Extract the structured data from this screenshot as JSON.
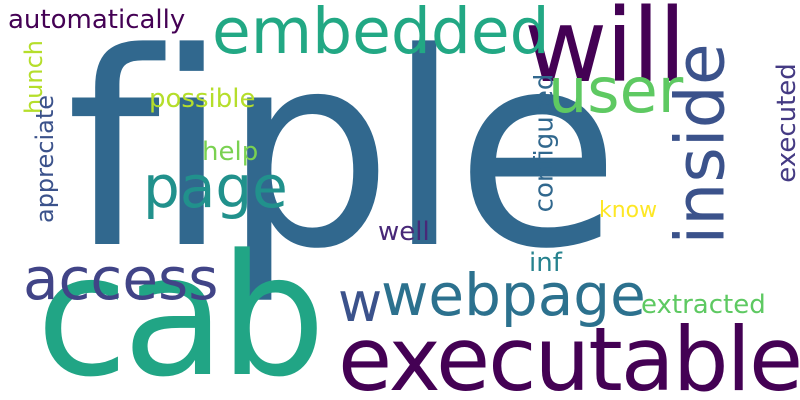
{
  "words": [
    {
      "text": "fiple",
      "color": "#31688e",
      "orientation": "horizontal"
    },
    {
      "text": "cab",
      "color": "#21a585",
      "orientation": "horizontal"
    },
    {
      "text": "executable",
      "color": "#440154",
      "orientation": "horizontal"
    },
    {
      "text": "webpage",
      "color": "#2c718e",
      "orientation": "horizontal"
    },
    {
      "text": "will",
      "color": "#440154",
      "orientation": "horizontal"
    },
    {
      "text": "embedded",
      "color": "#22a884",
      "orientation": "horizontal"
    },
    {
      "text": "inside",
      "color": "#3b528b",
      "orientation": "vertical"
    },
    {
      "text": "user",
      "color": "#5ec962",
      "orientation": "horizontal"
    },
    {
      "text": "page",
      "color": "#21918c",
      "orientation": "horizontal"
    },
    {
      "text": "access",
      "color": "#414487",
      "orientation": "horizontal"
    },
    {
      "text": "w",
      "color": "#3b528b",
      "orientation": "horizontal"
    },
    {
      "text": "automatically",
      "color": "#440154",
      "orientation": "horizontal"
    },
    {
      "text": "possible",
      "color": "#b5de2b",
      "orientation": "horizontal"
    },
    {
      "text": "help",
      "color": "#7ad151",
      "orientation": "horizontal"
    },
    {
      "text": "well",
      "color": "#482878",
      "orientation": "horizontal"
    },
    {
      "text": "inf",
      "color": "#26828e",
      "orientation": "horizontal"
    },
    {
      "text": "know",
      "color": "#fde725",
      "orientation": "horizontal"
    },
    {
      "text": "extracted",
      "color": "#5ec962",
      "orientation": "horizontal"
    },
    {
      "text": "hunch",
      "color": "#b5de2b",
      "orientation": "vertical"
    },
    {
      "text": "appreciate",
      "color": "#3b528b",
      "orientation": "vertical"
    },
    {
      "text": "configured",
      "color": "#31688e",
      "orientation": "vertical"
    },
    {
      "text": "executed",
      "color": "#443a83",
      "orientation": "vertical"
    }
  ]
}
